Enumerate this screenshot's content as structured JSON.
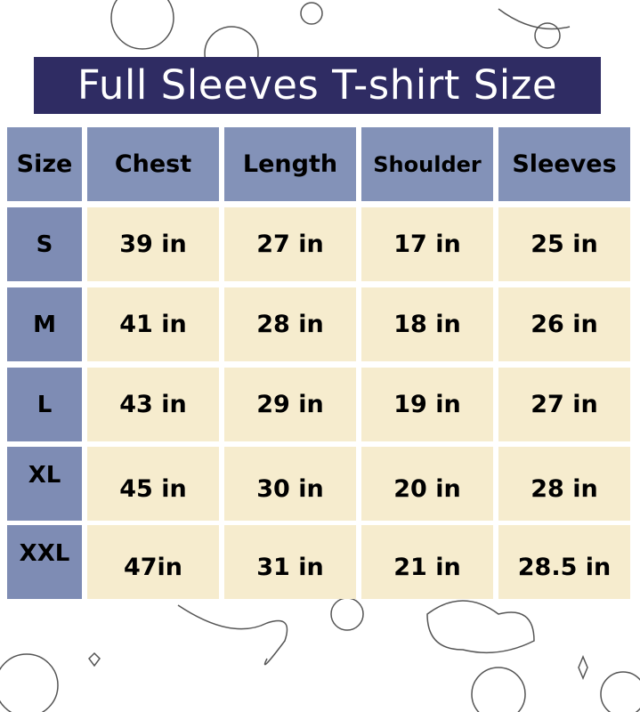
{
  "title": "Full Sleeves T-shirt Size",
  "colors": {
    "title_bg": "#2f2c63",
    "header_bg": "#8392b8",
    "size_bg": "#7e8cb4",
    "value_bg": "#f6ecce"
  },
  "table": {
    "headers": [
      "Size",
      "Chest",
      "Length",
      "Shoulder",
      "Sleeves"
    ],
    "rows": [
      [
        "S",
        "39 in",
        "27 in",
        "17 in",
        "25 in"
      ],
      [
        "M",
        "41 in",
        "28 in",
        "18 in",
        "26 in"
      ],
      [
        "L",
        "43 in",
        "29 in",
        "19 in",
        "27 in"
      ],
      [
        "XL",
        "45 in",
        "30 in",
        "20 in",
        "28 in"
      ],
      [
        "XXL",
        "47in",
        "31 in",
        "21 in",
        "28.5 in"
      ]
    ]
  }
}
